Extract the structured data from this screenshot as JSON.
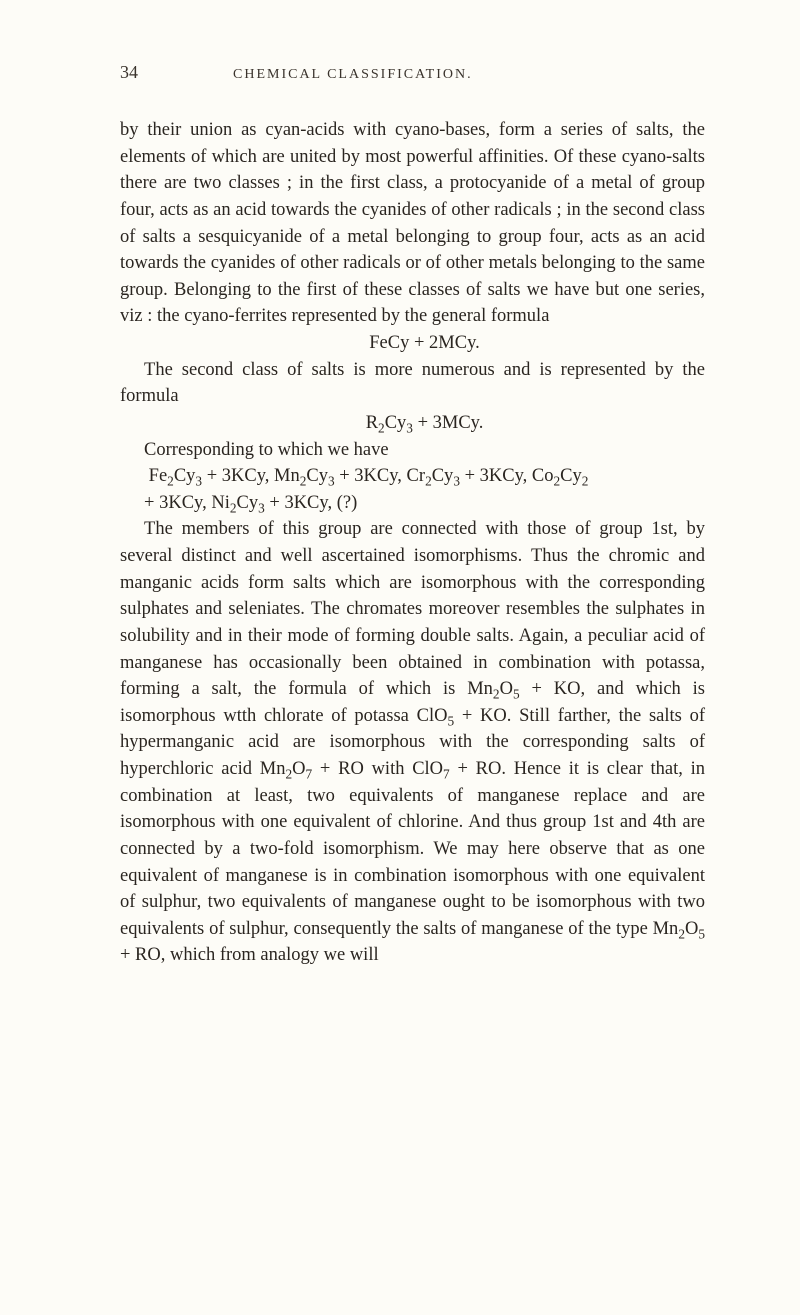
{
  "header": {
    "page_number": "34",
    "running_title": "CHEMICAL CLASSIFICATION."
  },
  "paras": {
    "p1": "by their union as cyan-acids with cyano-bases, form a series of salts, the elements of which are united by most powerful affinities. Of these cyano-salts there are two classes ; in the first class, a protocyanide of a metal of group four, acts as an acid towards the cyanides of other radicals ; in the second class of salts a sesquicyanide of a metal belonging to group four, acts as an acid towards the cyanides of other radicals or of other metals belonging to the same group. Belonging to the first of these classes of salts we have but one series, viz : the cyano-ferrites represented by the general formula",
    "f1": "FeCy + 2MCy.",
    "p2": "The second class of salts is more numerous and is represented by the formula",
    "f2a": "R",
    "f2b": "Cy",
    "f2c": " + 3MCy.",
    "p3": "Corresponding to which we have",
    "f3line1_a": "Fe",
    "f3line1_b": "Cy",
    "f3line1_c": " + 3KCy, Mn",
    "f3line1_d": "Cy",
    "f3line1_e": " + 3KCy, Cr",
    "f3line1_f": "Cy",
    "f3line1_g": " + 3KCy, Co",
    "f3line1_h": "Cy",
    "f3line2_a": "+ 3KCy, Ni",
    "f3line2_b": "Cy",
    "f3line2_c": " + 3KCy, (?)",
    "p4a": "The members of this group are connected with those of group 1st, by several distinct and well ascertained isomorphisms. Thus the chromic and manganic acids form salts which are isomorphous with the corresponding sulphates and seleniates. The chromates moreover resembles the sulphates in solubility and in their mode of forming double salts. Again, a peculiar acid of manganese has occasionally been obtained in combination with potassa, forming a salt, the formula of which is Mn",
    "p4b": "O",
    "p4c": " + KO, and which is isomorphous wtth chlorate of potassa ClO",
    "p4d": " + KO. Still farther, the salts of hypermanganic acid are isomorphous with the corresponding salts of hyperchloric acid Mn",
    "p4e": "O",
    "p4f": " + RO with ClO",
    "p4g": " + RO. Hence it is clear that, in combination at least, two equivalents of manganese replace and are isomorphous with one equivalent of chlorine. And thus group 1st and 4th are connected by a two-fold isomorphism. We may here observe that as one equivalent of manganese is in combination isomorphous with one equivalent of sulphur, two equivalents of manganese ought to be isomorphous with two equivalents of sulphur, consequently the salts of manganese of the type Mn",
    "p4h": "O",
    "p4i": " + RO, which from analogy we will",
    "sub2": "2",
    "sub3": "3",
    "sub5": "5",
    "sub7": "7"
  }
}
